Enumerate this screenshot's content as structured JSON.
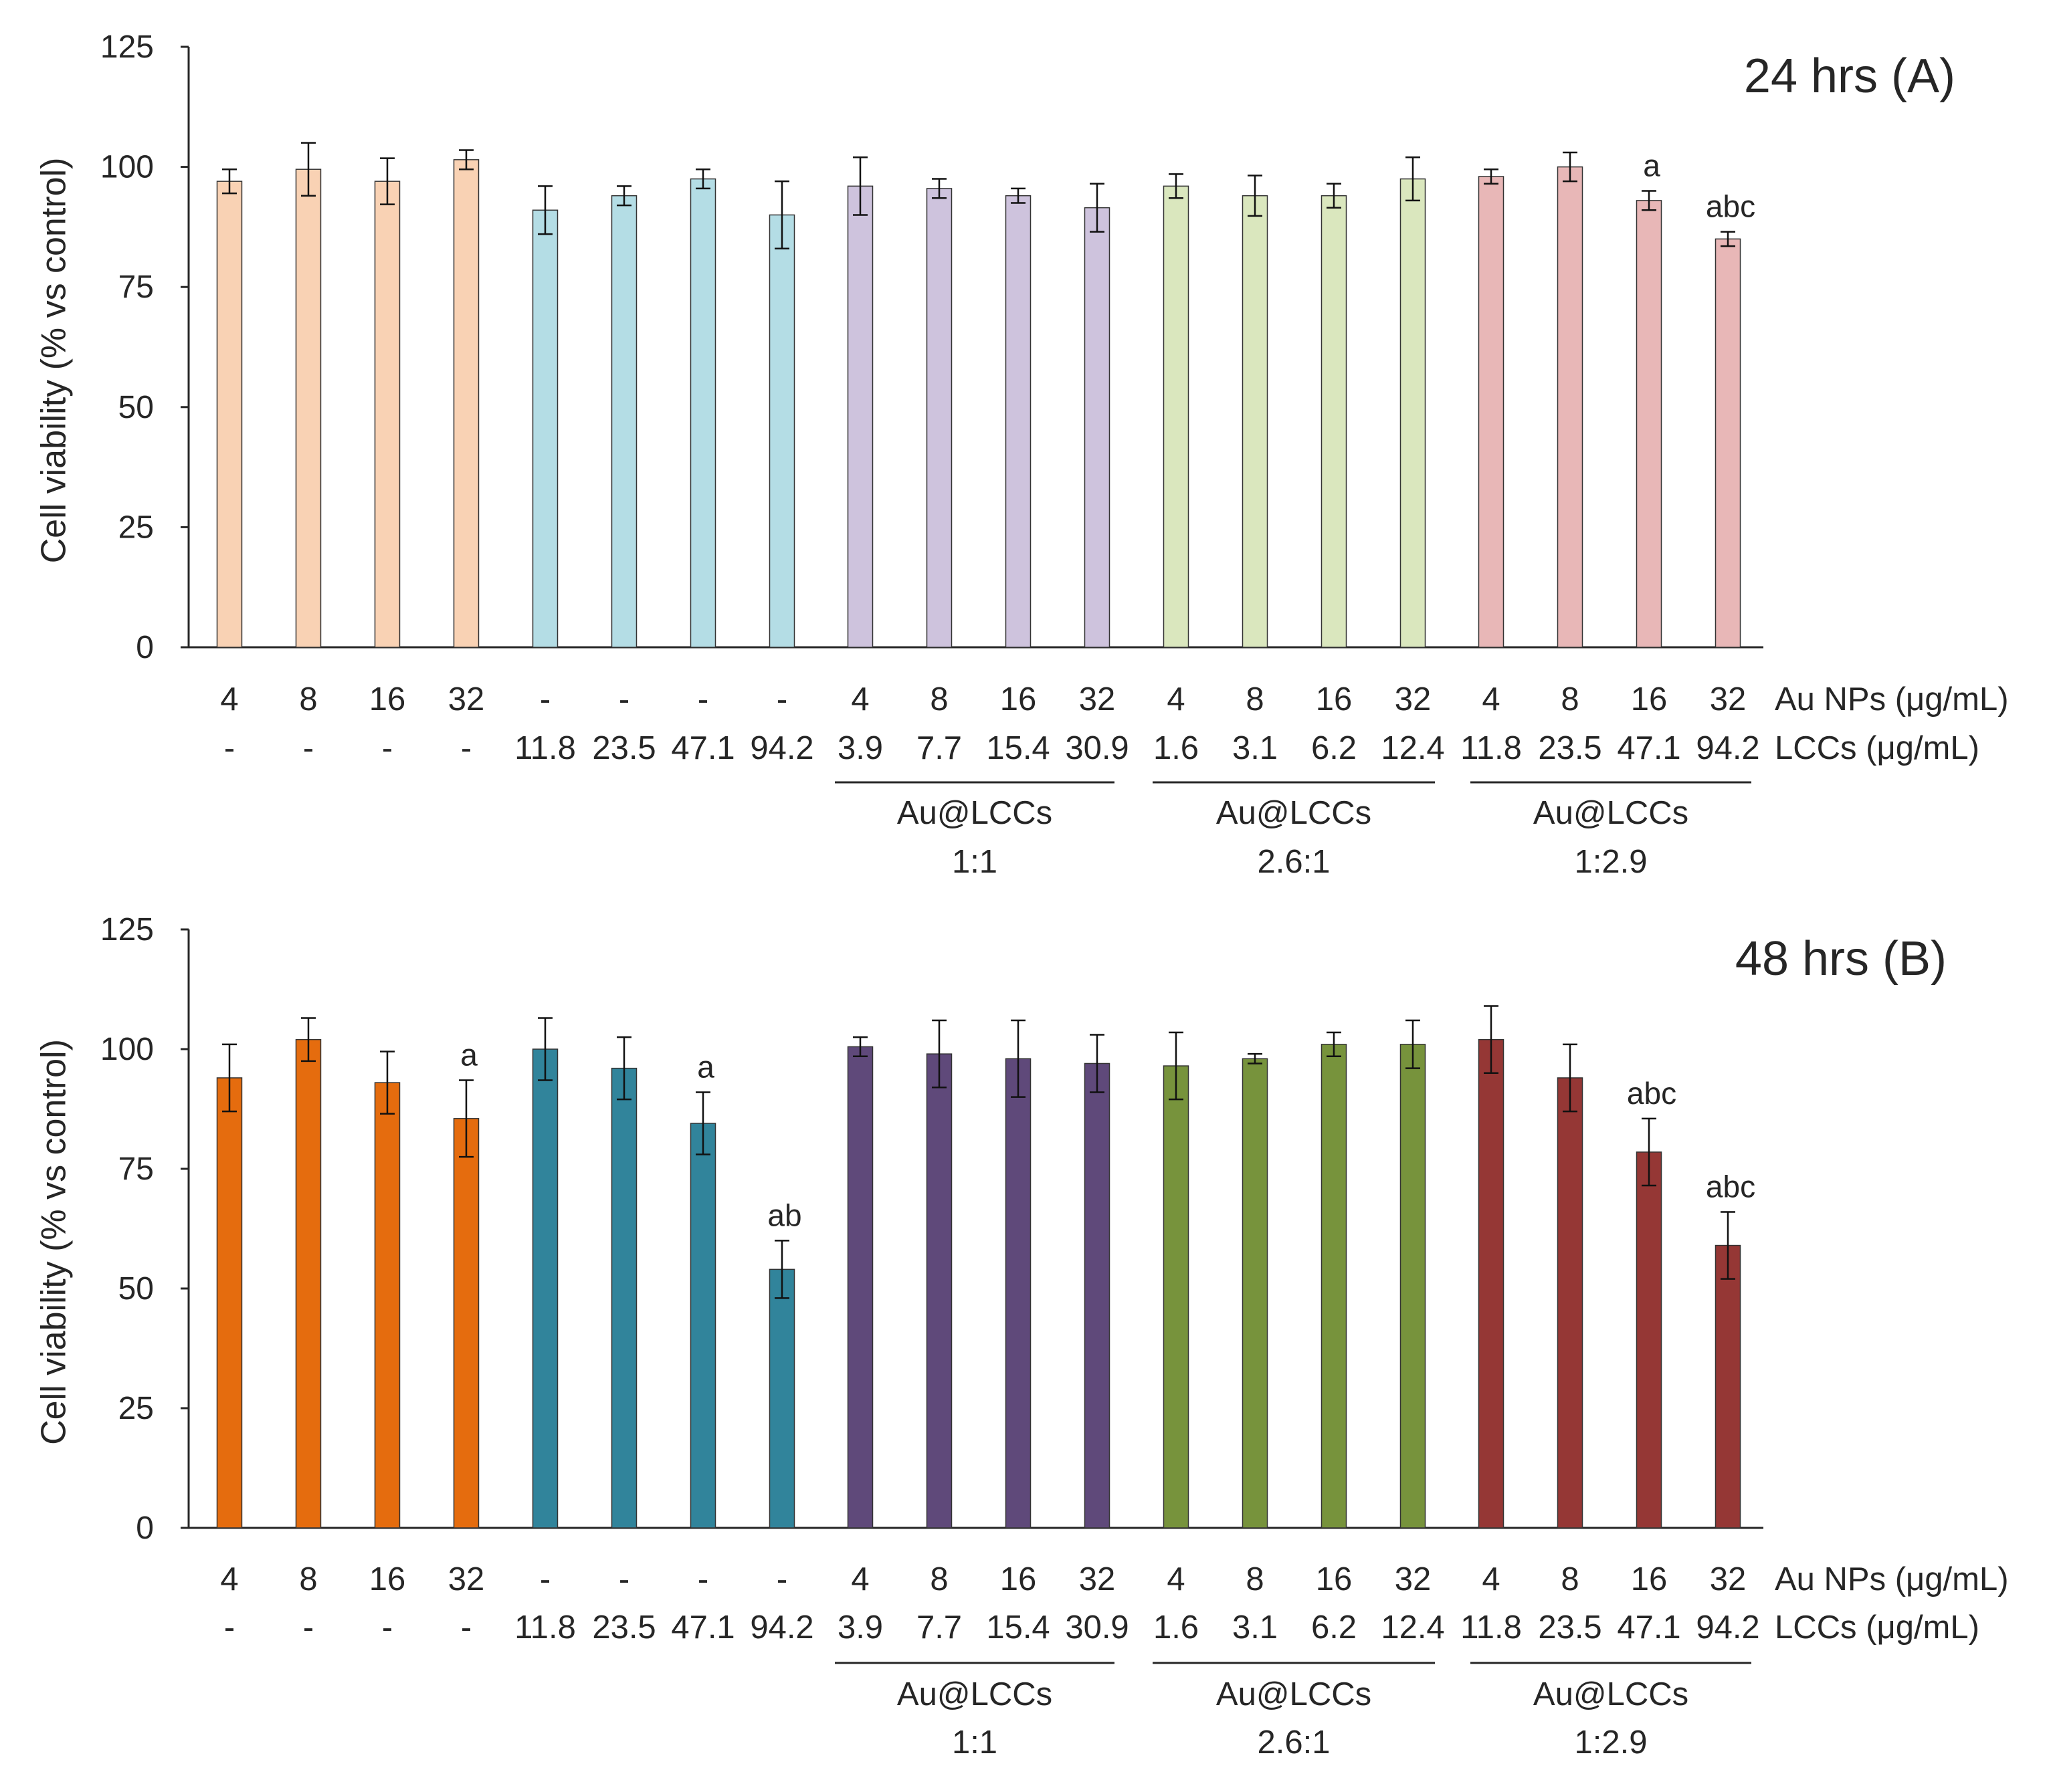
{
  "chart_data": [
    {
      "type": "bar",
      "title": "24 hrs (A)",
      "ylabel": "Cell viability (% vs control)",
      "ylim": [
        0,
        125
      ],
      "yticks": [
        0,
        25,
        50,
        75,
        100,
        125
      ],
      "row1_name": "Au NPs (μg/mL)",
      "row2_name": "LCCs (μg/mL)",
      "au_nps": [
        "4",
        "8",
        "16",
        "32",
        "-",
        "-",
        "-",
        "-",
        "4",
        "8",
        "16",
        "32",
        "4",
        "8",
        "16",
        "32",
        "4",
        "8",
        "16",
        "32"
      ],
      "lccs": [
        "-",
        "-",
        "-",
        "-",
        "11.8",
        "23.5",
        "47.1",
        "94.2",
        "3.9",
        "7.7",
        "15.4",
        "30.9",
        "1.6",
        "3.1",
        "6.2",
        "12.4",
        "11.8",
        "23.5",
        "47.1",
        "94.2"
      ],
      "groups": [
        {
          "name": "Au NPs",
          "color": "#F9D2B4",
          "values": [
            97,
            99.5,
            97,
            101.5
          ],
          "errors": [
            2.5,
            5.5,
            4.8,
            2
          ]
        },
        {
          "name": "LCCs",
          "color": "#B4DDE5",
          "values": [
            91,
            94,
            97.5,
            90
          ],
          "errors": [
            5,
            2,
            2,
            7
          ]
        },
        {
          "name": "Au@LCCs 1:1",
          "color": "#CEC3DD",
          "values": [
            96,
            95.5,
            94,
            91.5
          ],
          "errors": [
            6,
            2,
            1.5,
            5
          ]
        },
        {
          "name": "Au@LCCs 2.6:1",
          "color": "#DAE7BE",
          "values": [
            96,
            94,
            94,
            97.5
          ],
          "errors": [
            2.5,
            4.2,
            2.5,
            4.5
          ]
        },
        {
          "name": "Au@LCCs 1:2.9",
          "color": "#E8B7B7",
          "values": [
            98,
            100,
            93,
            85
          ],
          "errors": [
            1.5,
            3,
            2,
            1.5
          ]
        }
      ],
      "significance": [
        {
          "bar": 18,
          "label": "a"
        },
        {
          "bar": 19,
          "label": "abc"
        }
      ],
      "bracket_labels": [
        {
          "name": "Au@LCCs",
          "ratio": "1:1"
        },
        {
          "name": "Au@LCCs",
          "ratio": "2.6:1"
        },
        {
          "name": "Au@LCCs",
          "ratio": "1:2.9"
        }
      ]
    },
    {
      "type": "bar",
      "title": "48 hrs (B)",
      "ylabel": "Cell viability (% vs control)",
      "ylim": [
        0,
        125
      ],
      "yticks": [
        0,
        25,
        50,
        75,
        100,
        125
      ],
      "row1_name": "Au NPs (μg/mL)",
      "row2_name": "LCCs (μg/mL)",
      "au_nps": [
        "4",
        "8",
        "16",
        "32",
        "-",
        "-",
        "-",
        "-",
        "4",
        "8",
        "16",
        "32",
        "4",
        "8",
        "16",
        "32",
        "4",
        "8",
        "16",
        "32"
      ],
      "lccs": [
        "-",
        "-",
        "-",
        "-",
        "11.8",
        "23.5",
        "47.1",
        "94.2",
        "3.9",
        "7.7",
        "15.4",
        "30.9",
        "1.6",
        "3.1",
        "6.2",
        "12.4",
        "11.8",
        "23.5",
        "47.1",
        "94.2"
      ],
      "groups": [
        {
          "name": "Au NPs",
          "color": "#E56C0E",
          "values": [
            94,
            102,
            93,
            85.5
          ],
          "errors": [
            7,
            4.5,
            6.5,
            8
          ]
        },
        {
          "name": "LCCs",
          "color": "#31849B",
          "values": [
            100,
            96,
            84.5,
            54
          ],
          "errors": [
            6.5,
            6.5,
            6.5,
            6
          ]
        },
        {
          "name": "Au@LCCs 1:1",
          "color": "#5F497A",
          "values": [
            100.5,
            99,
            98,
            97
          ],
          "errors": [
            2,
            7,
            8,
            6
          ]
        },
        {
          "name": "Au@LCCs 2.6:1",
          "color": "#77933C",
          "values": [
            96.5,
            98,
            101,
            101
          ],
          "errors": [
            7,
            1,
            2.5,
            5
          ]
        },
        {
          "name": "Au@LCCs 1:2.9",
          "color": "#953735",
          "values": [
            102,
            94,
            78.5,
            59
          ],
          "errors": [
            7,
            7,
            7,
            7
          ]
        }
      ],
      "significance": [
        {
          "bar": 3,
          "label": "a"
        },
        {
          "bar": 6,
          "label": "a"
        },
        {
          "bar": 7,
          "label": "ab"
        },
        {
          "bar": 18,
          "label": "abc"
        },
        {
          "bar": 19,
          "label": "abc"
        }
      ],
      "bracket_labels": [
        {
          "name": "Au@LCCs",
          "ratio": "1:1"
        },
        {
          "name": "Au@LCCs",
          "ratio": "2.6:1"
        },
        {
          "name": "Au@LCCs",
          "ratio": "1:2.9"
        }
      ]
    }
  ]
}
